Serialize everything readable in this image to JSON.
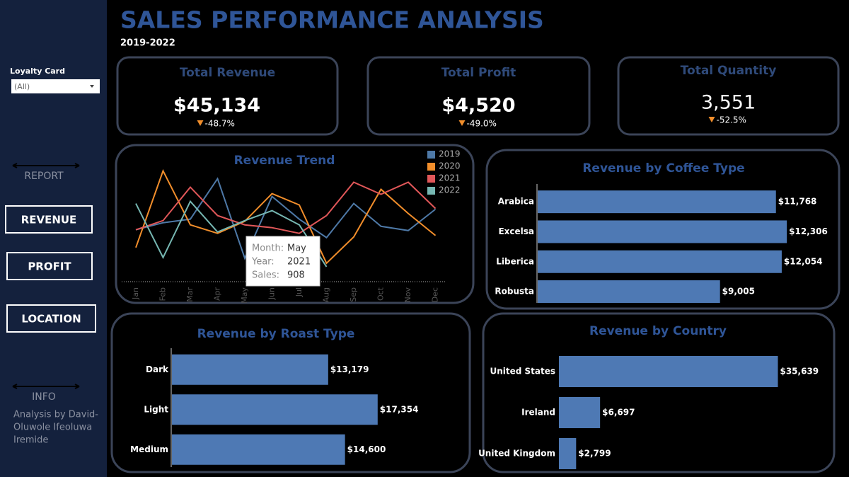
{
  "header": {
    "title": "SALES PERFORMANCE ANALYSIS",
    "subtitle": "2019-2022"
  },
  "sidebar": {
    "filter_label": "Loyalty Card",
    "filter_value": "(All)",
    "report": "REPORT",
    "buttons": [
      "REVENUE",
      "PROFIT",
      "LOCATION"
    ],
    "info": "INFO",
    "credit": [
      "Analysis by David-",
      "Oluwole Ifeoluwa",
      "Iremide"
    ]
  },
  "kpis": [
    {
      "label": "Total Revenue",
      "value": "$45,134",
      "change": "-48.7%"
    },
    {
      "label": "Total Profit",
      "value": "$4,520",
      "change": "-49.0%"
    },
    {
      "label": "Total Quantity",
      "value": "3,551",
      "change": "-52.5%"
    }
  ],
  "tooltip": {
    "rows": [
      [
        "Month:",
        "May"
      ],
      [
        "Year:",
        "2021"
      ],
      [
        "Sales:",
        "908"
      ]
    ]
  },
  "chart_data": [
    {
      "type": "line",
      "title": "Revenue Trend",
      "categories": [
        "Jan",
        "Feb",
        "Mar",
        "Apr",
        "May",
        "Jun",
        "Jul",
        "Aug",
        "Sep",
        "Oct",
        "Nov",
        "Dec"
      ],
      "ylim": [
        0,
        1900
      ],
      "legend": "top-right",
      "series": [
        {
          "name": "2019",
          "color": "#4e79a7",
          "values": [
            829,
            942,
            999,
            1646,
            375,
            1362,
            999,
            704,
            1249,
            885,
            817,
            1158
          ]
        },
        {
          "name": "2020",
          "color": "#f28e2b",
          "values": [
            545,
            1771,
            908,
            772,
            965,
            1407,
            1226,
            295,
            715,
            1476,
            1090,
            738
          ]
        },
        {
          "name": "2021",
          "color": "#e15759",
          "values": [
            829,
            976,
            1510,
            1056,
            908,
            863,
            772,
            1056,
            1589,
            1396,
            1589,
            1169
          ]
        },
        {
          "name": "2022",
          "color": "#76b7b2",
          "values": [
            1249,
            386,
            1283,
            794,
            976,
            1135,
            908,
            238,
            null,
            null,
            null,
            null
          ]
        }
      ]
    },
    {
      "type": "bar",
      "title": "Revenue by Coffee Type",
      "categories": [
        "Arabica",
        "Excelsa",
        "Liberica",
        "Robusta"
      ],
      "values": [
        11768,
        12306,
        12054,
        9005
      ],
      "value_labels": [
        "$11,768",
        "$12,306",
        "$12,054",
        "$9,005"
      ],
      "xlim": [
        0,
        13000
      ],
      "color": "#4e79b4"
    },
    {
      "type": "bar",
      "title": "Revenue by Roast Type",
      "categories": [
        "Dark",
        "Light",
        "Medium"
      ],
      "values": [
        13179,
        17354,
        14600
      ],
      "value_labels": [
        "$13,179",
        "$17,354",
        "$14,600"
      ],
      "xlim": [
        0,
        18500
      ],
      "color": "#4e79b4"
    },
    {
      "type": "bar",
      "title": "Revenue by Country",
      "categories": [
        "United States",
        "Ireland",
        "United Kingdom"
      ],
      "values": [
        35639,
        6697,
        2799
      ],
      "value_labels": [
        "$35,639",
        "$6,697",
        "$2,799"
      ],
      "xlim": [
        0,
        38000
      ],
      "color": "#4e79b4"
    }
  ]
}
